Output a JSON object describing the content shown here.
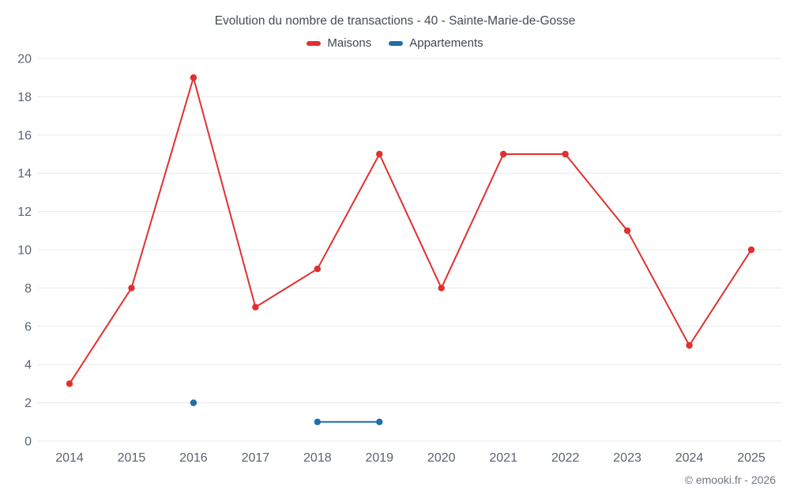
{
  "header": {
    "title": "Evolution du nombre de transactions - 40 - Sainte-Marie-de-Gosse"
  },
  "footer": {
    "credit": "© emooki.fr - 2026"
  },
  "chart_data": {
    "type": "line",
    "title": "Evolution du nombre de transactions - 40 - Sainte-Marie-de-Gosse",
    "categories": [
      "2014",
      "2015",
      "2016",
      "2017",
      "2018",
      "2019",
      "2020",
      "2021",
      "2022",
      "2023",
      "2024",
      "2025"
    ],
    "series": [
      {
        "name": "Maisons",
        "color": "#e0302f",
        "values": [
          3,
          8,
          19,
          7,
          9,
          15,
          8,
          15,
          15,
          11,
          5,
          10
        ]
      },
      {
        "name": "Appartements",
        "color": "#1f6fa8",
        "values": [
          null,
          null,
          2,
          null,
          1,
          1,
          null,
          null,
          null,
          null,
          null,
          null
        ]
      }
    ],
    "xlabel": "",
    "ylabel": "",
    "ylim": [
      0,
      20
    ],
    "ytick_step": 2,
    "grid": "horizontal",
    "legend_position": "top",
    "colors": {
      "grid_line": "#e7e9eb",
      "tick_label": "#5a6470",
      "background": "#ffffff"
    }
  }
}
